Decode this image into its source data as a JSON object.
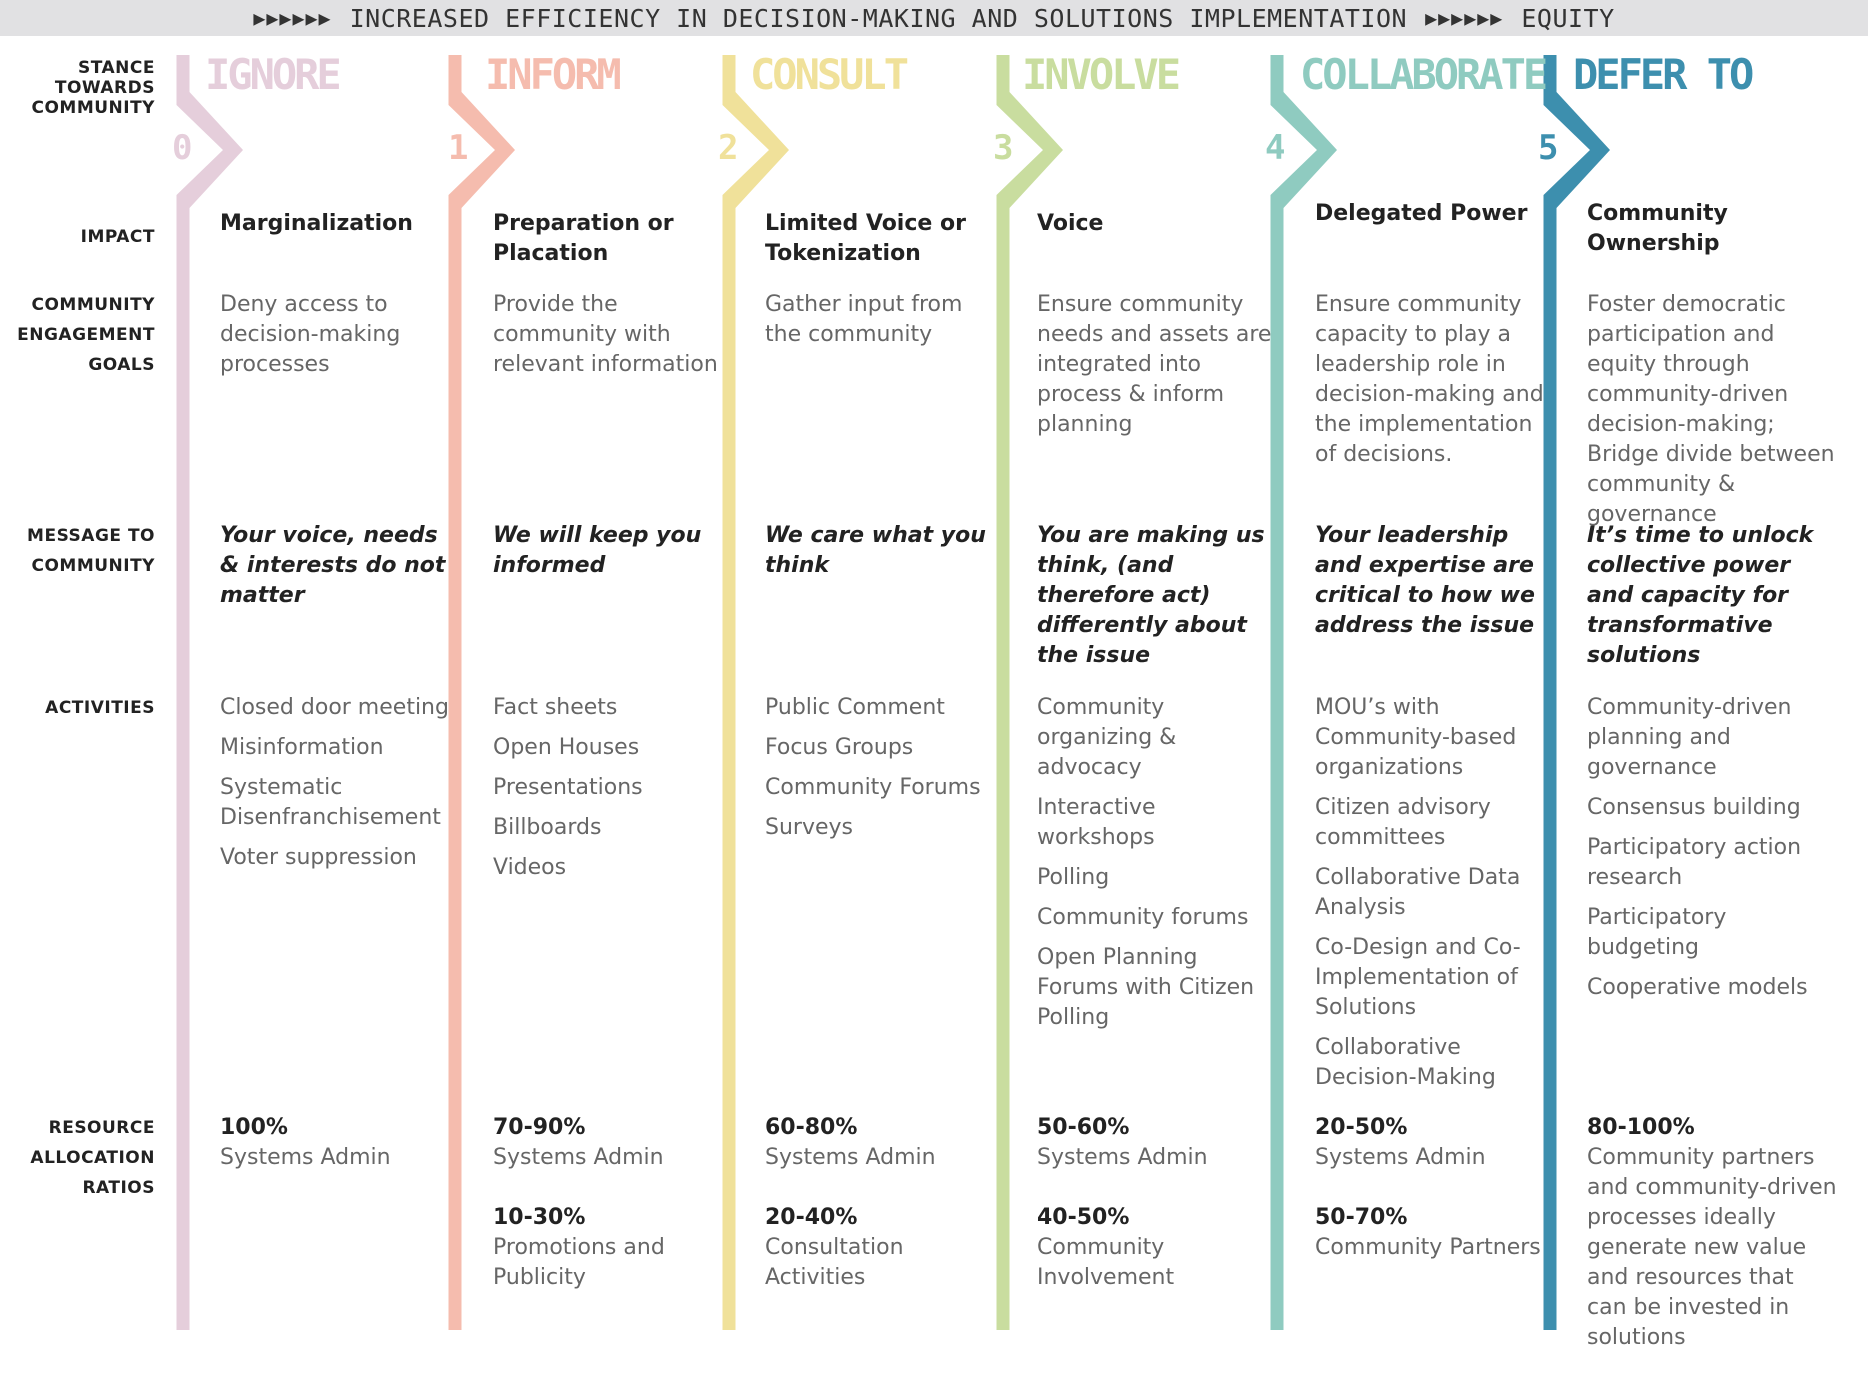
{
  "header": {
    "arrows_left": "▶▶▶▶▶▶",
    "banner": "INCREASED EFFICIENCY IN DECISION-MAKING AND SOLUTIONS IMPLEMENTATION",
    "arrows_right": "▶▶▶▶▶▶",
    "end_label": "EQUITY"
  },
  "row_labels": {
    "stance": "STANCE TOWARDS COMMUNITY",
    "impact": "IMPACT",
    "goals": "COMMUNITY ENGAGEMENT GOALS",
    "message": "MESSAGE TO COMMUNITY",
    "activities": "ACTIVITIES",
    "resources": "RESOURCE ALLOCATION RATIOS"
  },
  "stages": [
    {
      "number": "0",
      "title": "IGNORE",
      "color": "#e5cedb",
      "impact": "Marginalization",
      "goal": "Deny access to decision-making processes",
      "message": "Your voice, needs & interests do not matter",
      "activities": [
        "Closed door meeting",
        "Misinformation",
        "Systematic Disenfranchisement",
        "Voter suppression"
      ],
      "resources": [
        {
          "pct": "100%",
          "desc": "Systems Admin"
        }
      ]
    },
    {
      "number": "1",
      "title": "INFORM",
      "color": "#f5bcae",
      "impact": "Preparation or Placation",
      "goal": "Provide the community with relevant information",
      "message": "We will keep you informed",
      "activities": [
        "Fact sheets",
        "Open Houses",
        "Presentations",
        "Billboards",
        "Videos"
      ],
      "resources": [
        {
          "pct": "70-90%",
          "desc": "Systems Admin"
        },
        {
          "pct": "10-30%",
          "desc": "Promotions and Publicity"
        }
      ]
    },
    {
      "number": "2",
      "title": "CONSULT",
      "color": "#f0e19a",
      "impact": "Limited Voice or Tokenization",
      "goal": "Gather input from the community",
      "message": "We care what you think",
      "activities": [
        "Public Comment",
        "Focus Groups",
        "Community Forums",
        "Surveys"
      ],
      "resources": [
        {
          "pct": "60-80%",
          "desc": "Systems Admin"
        },
        {
          "pct": "20-40%",
          "desc": "Consultation Activities"
        }
      ]
    },
    {
      "number": "3",
      "title": "INVOLVE",
      "color": "#c9dd9f",
      "impact": "Voice",
      "goal": "Ensure community needs and assets are integrated into process & inform planning",
      "message": "You are making us think, (and therefore act) differently about the issue",
      "activities": [
        "Community organizing & advocacy",
        "Interactive workshops",
        "Polling",
        "Community forums",
        "Open Planning Forums with Citizen Polling"
      ],
      "resources": [
        {
          "pct": "50-60%",
          "desc": "Systems Admin"
        },
        {
          "pct": "40-50%",
          "desc": "Community Involvement"
        }
      ]
    },
    {
      "number": "4",
      "title": "COLLABORATE",
      "color": "#8fcbc0",
      "impact": "Delegated Power",
      "goal": "Ensure community capacity to play a leadership role in decision-making and the implementation of decisions.",
      "message": "Your leadership and expertise are critical to how we address the issue",
      "activities": [
        "MOU’s with Community-based organizations",
        "Citizen advisory committees",
        "Collaborative Data Analysis",
        "Co-Design and Co-Implementation of Solutions",
        "Collaborative Decision-Making"
      ],
      "resources": [
        {
          "pct": "20-50%",
          "desc": "Systems Admin"
        },
        {
          "pct": "50-70%",
          "desc": "Community Partners"
        }
      ]
    },
    {
      "number": "5",
      "title": "DEFER TO",
      "color": "#3d8fae",
      "impact": "Community Ownership",
      "goal": "Foster democratic participation and equity through community-driven decision-making; Bridge divide between community & governance",
      "message": "It’s time to unlock collective power and capacity for transformative solutions",
      "activities": [
        "Community-driven planning and governance",
        "Consensus building",
        "Participatory action research",
        "Participatory budgeting",
        "Cooperative models"
      ],
      "resources": [
        {
          "pct": "80-100%",
          "desc": "Community partners and community-driven processes ideally generate new value and resources that can be invested in solutions"
        }
      ]
    }
  ]
}
